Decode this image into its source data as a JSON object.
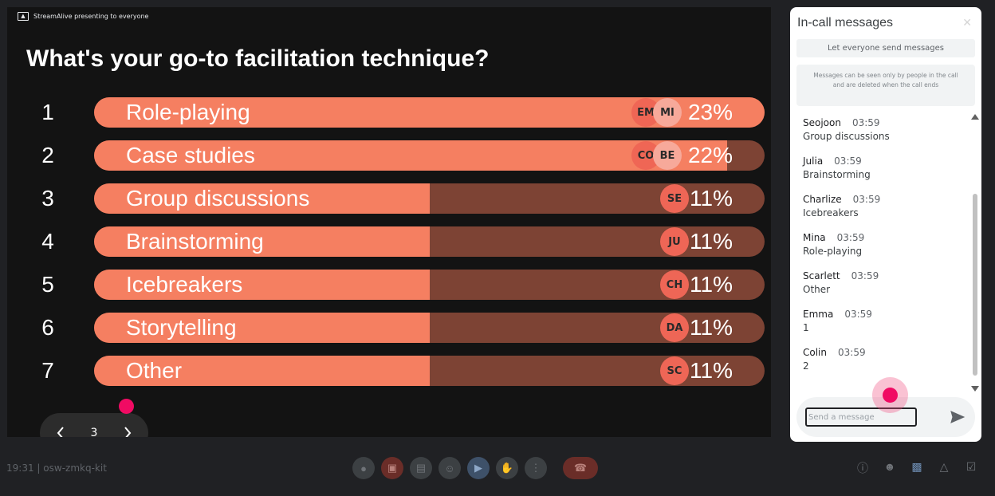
{
  "presentation": {
    "presenter_label": "StreamAlive presenting to everyone",
    "question": "What's your go-to facilitation technique?",
    "options": [
      {
        "rank": "1",
        "label": "Role-playing",
        "percent": "23%",
        "fill": 1.0,
        "avatars": [
          "EM",
          "MI"
        ]
      },
      {
        "rank": "2",
        "label": "Case studies",
        "percent": "22%",
        "fill": 0.944,
        "avatars": [
          "CO",
          "BE"
        ]
      },
      {
        "rank": "3",
        "label": "Group discussions",
        "percent": "11%",
        "fill": 0.5,
        "avatars": [
          "SE"
        ]
      },
      {
        "rank": "4",
        "label": "Brainstorming",
        "percent": "11%",
        "fill": 0.5,
        "avatars": [
          "JU"
        ]
      },
      {
        "rank": "5",
        "label": "Icebreakers",
        "percent": "11%",
        "fill": 0.5,
        "avatars": [
          "CH"
        ]
      },
      {
        "rank": "6",
        "label": "Storytelling",
        "percent": "11%",
        "fill": 0.5,
        "avatars": [
          "DA"
        ]
      },
      {
        "rank": "7",
        "label": "Other",
        "percent": "11%",
        "fill": 0.5,
        "avatars": [
          "SC"
        ]
      }
    ],
    "pager": {
      "page": "3",
      "prev_icon": "chevron-left-icon",
      "next_icon": "chevron-right-icon"
    }
  },
  "chat": {
    "title": "In-call messages",
    "close_icon": "close-icon",
    "toggle_label": "Let everyone send messages",
    "notice": "Messages can be seen only by people in the call and are deleted when the call ends",
    "messages": [
      {
        "sender": "Seojoon",
        "time": "03:59",
        "text": "Group discussions"
      },
      {
        "sender": "Julia",
        "time": "03:59",
        "text": "Brainstorming"
      },
      {
        "sender": "Charlize",
        "time": "03:59",
        "text": "Icebreakers"
      },
      {
        "sender": "Mina",
        "time": "03:59",
        "text": "Role-playing"
      },
      {
        "sender": "Scarlett",
        "time": "03:59",
        "text": "Other"
      },
      {
        "sender": "Emma",
        "time": "03:59",
        "text": "1"
      },
      {
        "sender": "Colin",
        "time": "03:59",
        "text": "2"
      }
    ],
    "input_placeholder": "Send a message",
    "send_icon": "send-icon"
  },
  "bottombar": {
    "time": "19:31",
    "separator": "|",
    "meeting_code": "osw-zmkq-kit"
  },
  "colors": {
    "bar_fill": "#f57f61",
    "bar_track": "#7d4334",
    "cursor": "#f00b63"
  }
}
